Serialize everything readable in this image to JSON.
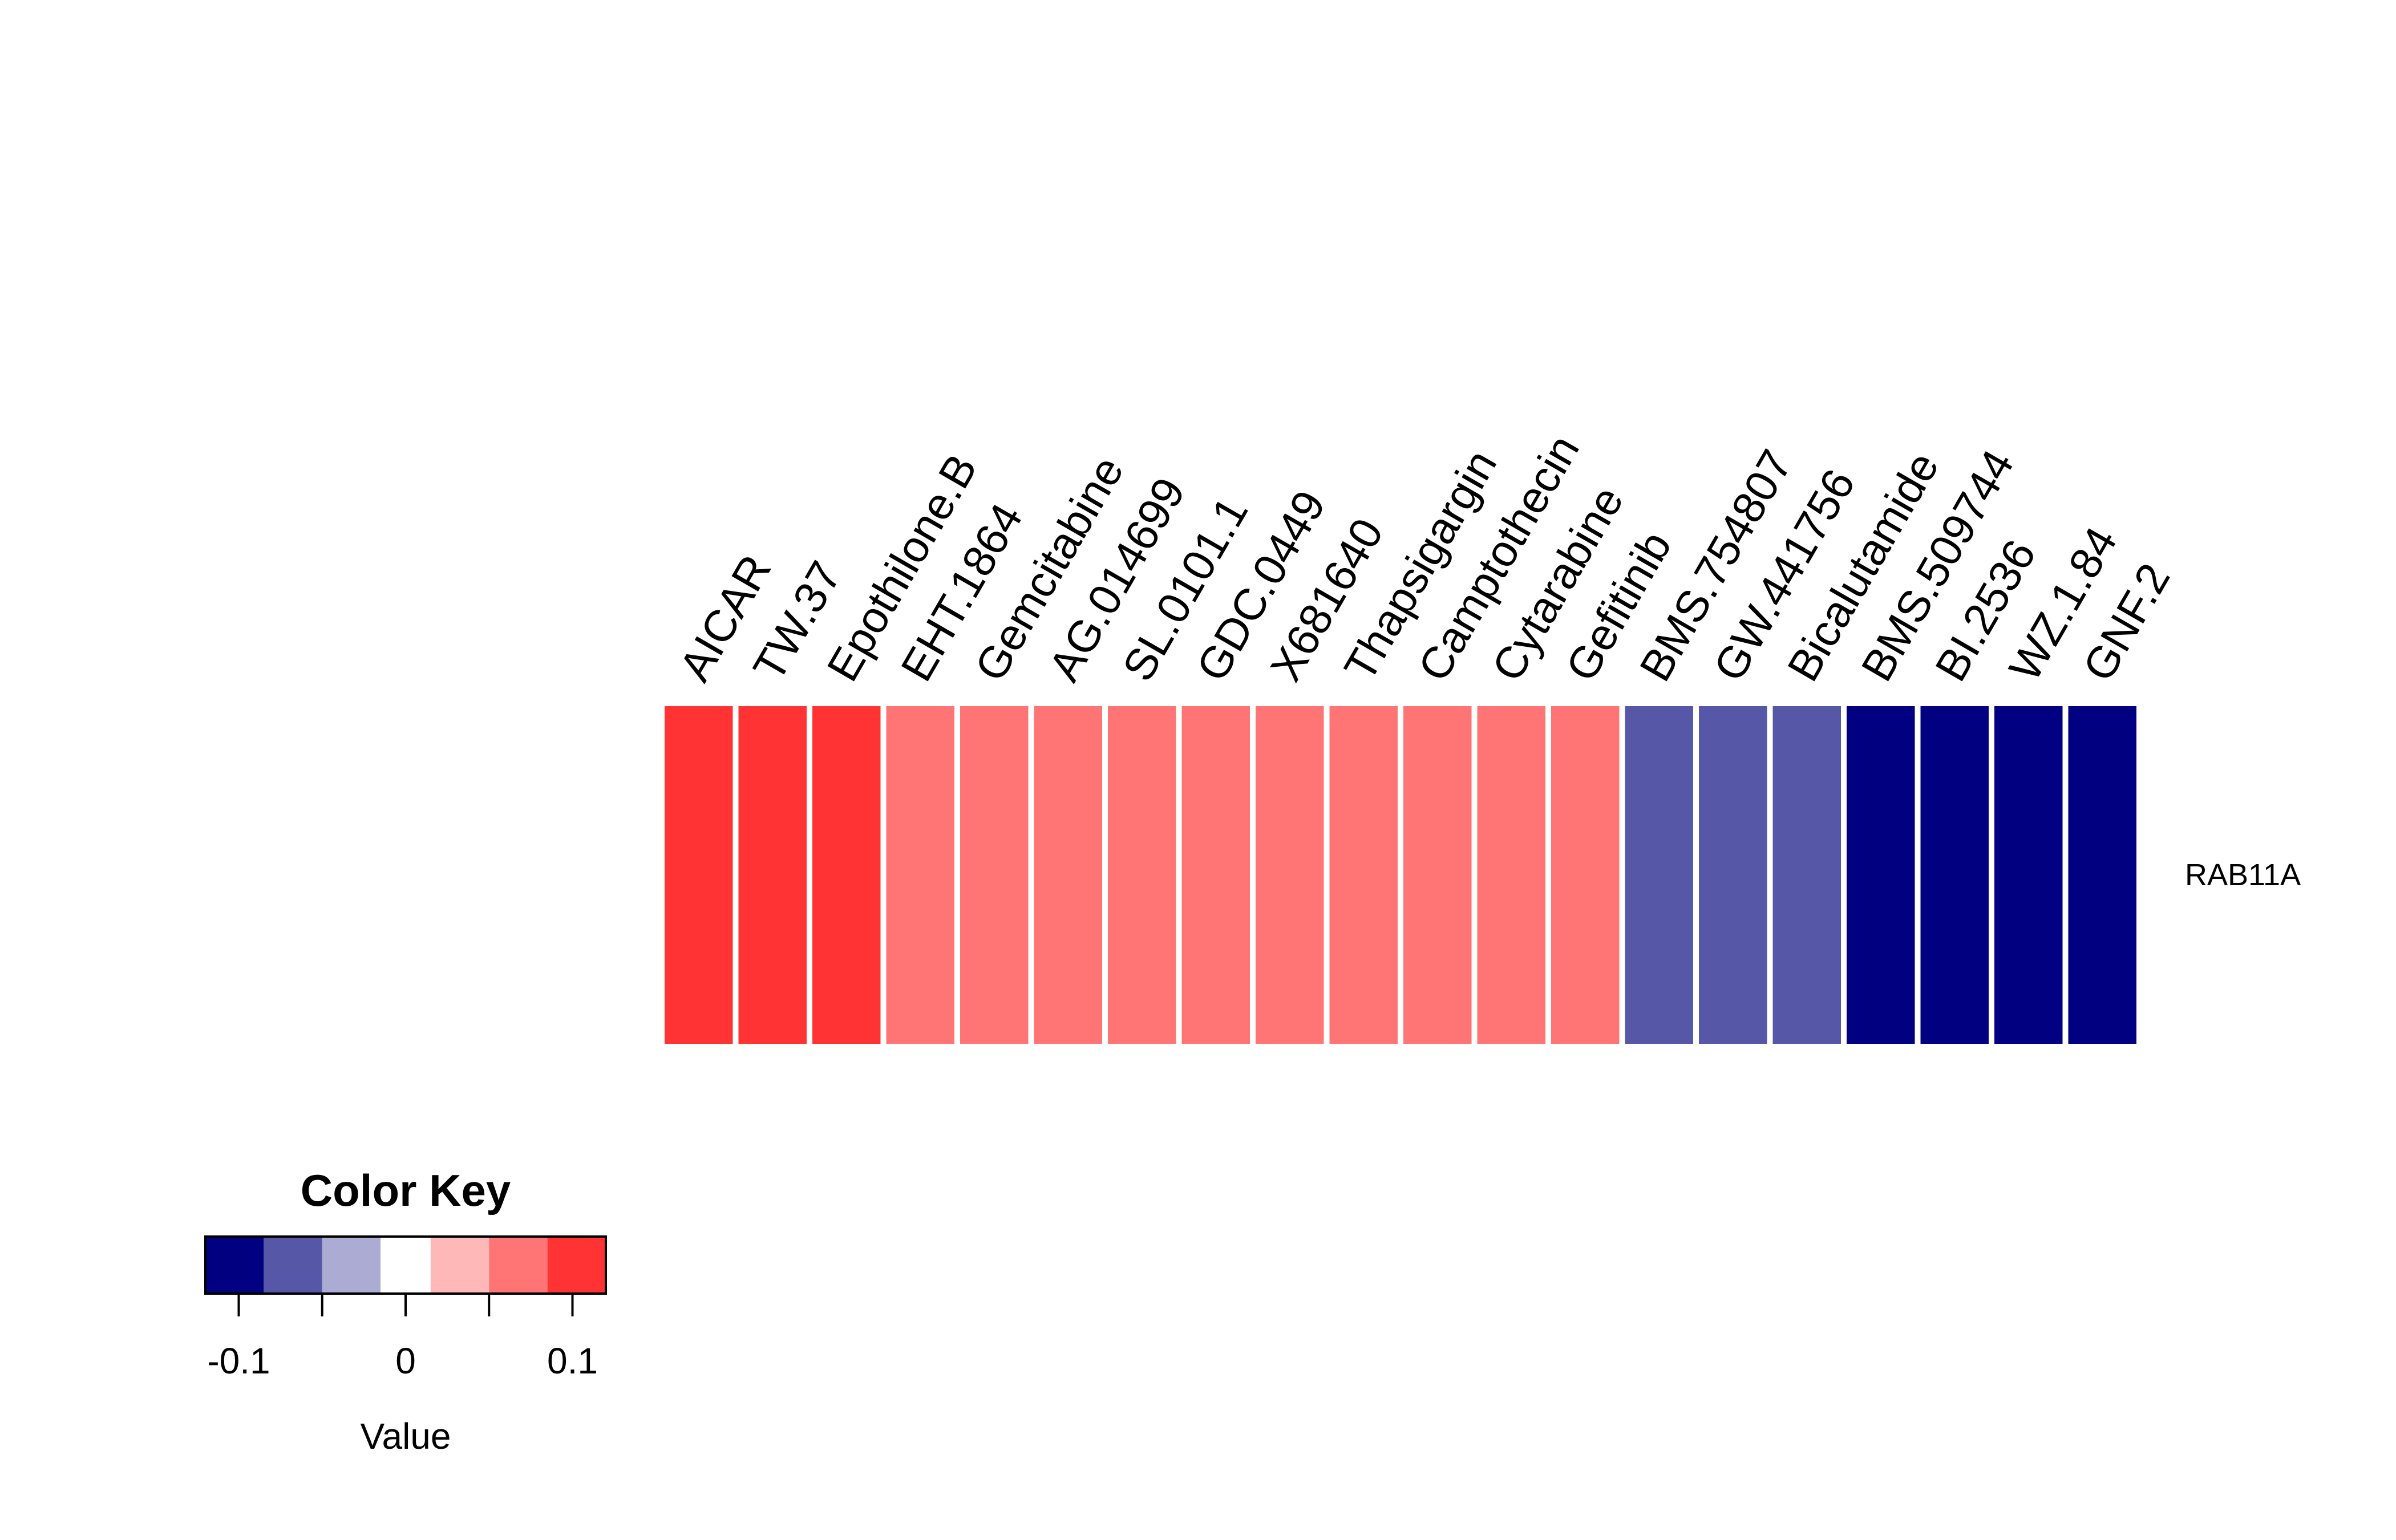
{
  "chart_data": {
    "type": "heatmap",
    "columns": [
      "AICAR",
      "TW.37",
      "Epothilone.B",
      "EHT.1864",
      "Gemcitabine",
      "AG.014699",
      "SL.0101.1",
      "GDC.0449",
      "X681640",
      "Thapsigargin",
      "Camptothecin",
      "Cytarabine",
      "Gefitinib",
      "BMS.754807",
      "GW.441756",
      "Bicalutamide",
      "BMS.509744",
      "BI.2536",
      "WZ.1.84",
      "GNF.2"
    ],
    "rows": [
      "RAB11A"
    ],
    "values": [
      [
        0.11,
        0.11,
        0.11,
        0.07,
        0.07,
        0.07,
        0.07,
        0.07,
        0.07,
        0.07,
        0.07,
        0.07,
        0.07,
        -0.07,
        -0.07,
        -0.07,
        -0.11,
        -0.11,
        -0.11,
        -0.11
      ]
    ],
    "color_key": {
      "title": "Color Key",
      "xlabel": "Value",
      "range": [
        -0.12,
        0.12
      ],
      "breaks": [
        -0.12,
        -0.085,
        -0.05,
        -0.015,
        0.015,
        0.05,
        0.085,
        0.12
      ],
      "colors": [
        "#000080",
        "#5757A8",
        "#ABABD3",
        "#FFFFFF",
        "#FFB8B8",
        "#FF7575",
        "#FF3333"
      ],
      "ticks": [
        -0.1,
        -0.05,
        0,
        0.05,
        0.1
      ],
      "tick_labels": [
        "-0.1",
        "",
        "0",
        "",
        "0.1"
      ]
    }
  }
}
